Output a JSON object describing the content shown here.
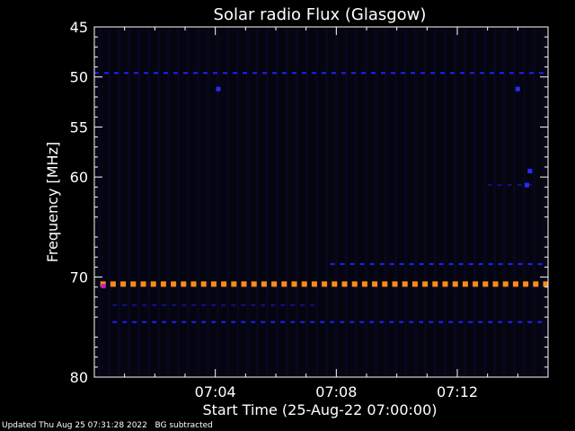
{
  "chart_data": {
    "type": "heatmap",
    "title": "Solar radio Flux (Glasgow)",
    "xlabel": "Start Time (25-Aug-22 07:00:00)",
    "ylabel": "Frequency [MHz]",
    "x_unit": "minutes after 07:00",
    "xlim": [
      0.0,
      15.0
    ],
    "ylim": [
      80,
      45
    ],
    "y_ticks": [
      {
        "value": 45,
        "label": "45"
      },
      {
        "value": 50,
        "label": "50"
      },
      {
        "value": 55,
        "label": "55"
      },
      {
        "value": 60,
        "label": "60"
      },
      {
        "value": 70,
        "label": "70"
      },
      {
        "value": 80,
        "label": "80"
      }
    ],
    "x_ticks": [
      {
        "value": 4,
        "label": "07:04"
      },
      {
        "value": 8,
        "label": "07:08"
      },
      {
        "value": 12,
        "label": "07:12"
      }
    ],
    "colors": {
      "background": "#000000",
      "plot_background": "#050510",
      "orange_band": "#ff8c1a",
      "blue_band": "#2020ff",
      "dim_blue": "#10108a",
      "axes": "#ffffff"
    },
    "bands": [
      {
        "frequency_mhz": 49.6,
        "x_start": 0.0,
        "x_end": 15.0,
        "color": "blue",
        "intensity": "medium",
        "style": "dashed"
      },
      {
        "frequency_mhz": 70.7,
        "x_start": 0.2,
        "x_end": 15.0,
        "color": "orange",
        "intensity": "high",
        "style": "dashed"
      },
      {
        "frequency_mhz": 68.7,
        "x_start": 7.8,
        "x_end": 15.0,
        "color": "blue",
        "intensity": "medium",
        "style": "dashed"
      },
      {
        "frequency_mhz": 72.8,
        "x_start": 0.6,
        "x_end": 7.4,
        "color": "dim_blue",
        "intensity": "low",
        "style": "dashed"
      },
      {
        "frequency_mhz": 74.5,
        "x_start": 0.6,
        "x_end": 15.0,
        "color": "blue",
        "intensity": "medium",
        "style": "dashed"
      },
      {
        "frequency_mhz": 60.8,
        "x_start": 13.0,
        "x_end": 14.6,
        "color": "dim_blue",
        "intensity": "low",
        "style": "dashed"
      }
    ],
    "spots": [
      {
        "x": 4.1,
        "frequency_mhz": 51.2,
        "color": "blue"
      },
      {
        "x": 14.0,
        "frequency_mhz": 51.2,
        "color": "blue"
      },
      {
        "x": 14.4,
        "frequency_mhz": 59.4,
        "color": "blue"
      },
      {
        "x": 14.3,
        "frequency_mhz": 60.8,
        "color": "blue"
      },
      {
        "x": 0.3,
        "frequency_mhz": 70.9,
        "color": "magenta"
      }
    ],
    "grid": false
  },
  "footer": {
    "updated": "Updated Thu Aug 25 07:31:28 2022",
    "note": "BG subtracted"
  }
}
